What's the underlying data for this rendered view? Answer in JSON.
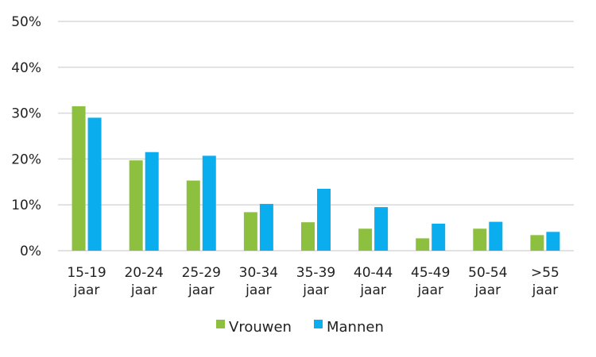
{
  "chart_data": {
    "type": "bar",
    "title": "",
    "xlabel": "",
    "ylabel": "",
    "ylim": [
      0,
      50
    ],
    "yticks": [
      "0%",
      "10%",
      "20%",
      "30%",
      "40%",
      "50%"
    ],
    "grid": true,
    "legend_position": "bottom",
    "categories": [
      [
        "15-19",
        "jaar"
      ],
      [
        "20-24",
        "jaar"
      ],
      [
        "25-29",
        "jaar"
      ],
      [
        "30-34",
        "jaar"
      ],
      [
        "35-39",
        "jaar"
      ],
      [
        "40-44",
        "jaar"
      ],
      [
        "45-49",
        "jaar"
      ],
      [
        "50-54",
        "jaar"
      ],
      [
        ">55",
        "jaar"
      ]
    ],
    "series": [
      {
        "name": "Vrouwen",
        "color": "#8dc03f",
        "values": [
          31.5,
          19.7,
          15.3,
          8.4,
          6.2,
          4.8,
          2.7,
          4.8,
          3.4
        ]
      },
      {
        "name": "Mannen",
        "color": "#0aaeef",
        "values": [
          29.0,
          21.5,
          20.7,
          10.2,
          13.5,
          9.5,
          5.9,
          6.3,
          4.1
        ]
      }
    ]
  }
}
